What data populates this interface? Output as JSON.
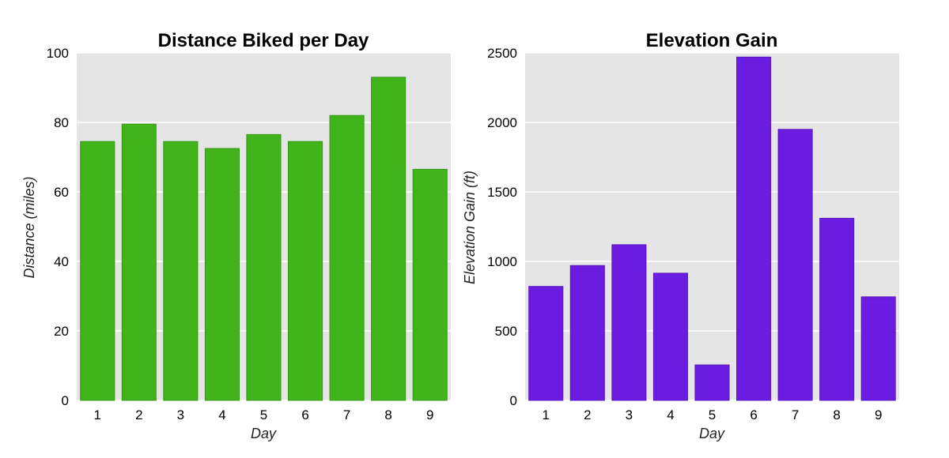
{
  "chart_data": [
    {
      "type": "bar",
      "title": "Distance Biked per Day",
      "xlabel": "Day",
      "ylabel": "Distance (miles)",
      "categories": [
        "1",
        "2",
        "3",
        "4",
        "5",
        "6",
        "7",
        "8",
        "9"
      ],
      "values": [
        74.5,
        79.5,
        74.5,
        72.5,
        76.5,
        74.5,
        82,
        93,
        66.5
      ],
      "ylim": [
        0,
        100
      ],
      "yticks": [
        "0",
        "20",
        "40",
        "60",
        "80",
        "100"
      ],
      "color": "#40b41a",
      "grid": true
    },
    {
      "type": "bar",
      "title": "Elevation Gain",
      "xlabel": "Day",
      "ylabel": "Elevation Gain (ft)",
      "categories": [
        "1",
        "2",
        "3",
        "4",
        "5",
        "6",
        "7",
        "8",
        "9"
      ],
      "values": [
        820,
        970,
        1120,
        915,
        255,
        2470,
        1950,
        1310,
        745
      ],
      "ylim": [
        0,
        2500
      ],
      "yticks": [
        "0",
        "500",
        "1000",
        "1500",
        "2000",
        "2500"
      ],
      "color": "#6a1de0",
      "grid": true
    }
  ]
}
